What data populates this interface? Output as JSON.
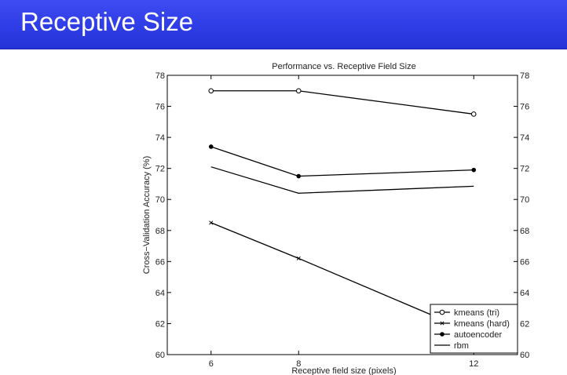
{
  "slide": {
    "title": "Receptive Size"
  },
  "chart_data": {
    "type": "line",
    "title": "Performance vs. Receptive Field Size",
    "xlabel": "Receptive field size (pixels)",
    "ylabel": "Cross−Validation Accuracy (%)",
    "x": [
      6,
      8,
      12
    ],
    "xticks": [
      "6",
      "8",
      "12"
    ],
    "xlim": [
      5,
      13
    ],
    "ylim": [
      60,
      78
    ],
    "yticks": [
      "60",
      "62",
      "64",
      "66",
      "68",
      "70",
      "72",
      "74",
      "76",
      "78"
    ],
    "legend_position": "bottom-right",
    "grid": false,
    "series": [
      {
        "name": "kmeans (tri)",
        "marker": "circle",
        "values": [
          77.0,
          77.0,
          75.5
        ]
      },
      {
        "name": "kmeans (hard)",
        "marker": "x",
        "values": [
          68.5,
          66.2,
          61.4
        ]
      },
      {
        "name": "autoencoder",
        "marker": "dot",
        "values": [
          73.4,
          71.5,
          71.9
        ]
      },
      {
        "name": "rbm",
        "marker": "none",
        "values": [
          72.1,
          70.4,
          70.85
        ]
      }
    ]
  }
}
